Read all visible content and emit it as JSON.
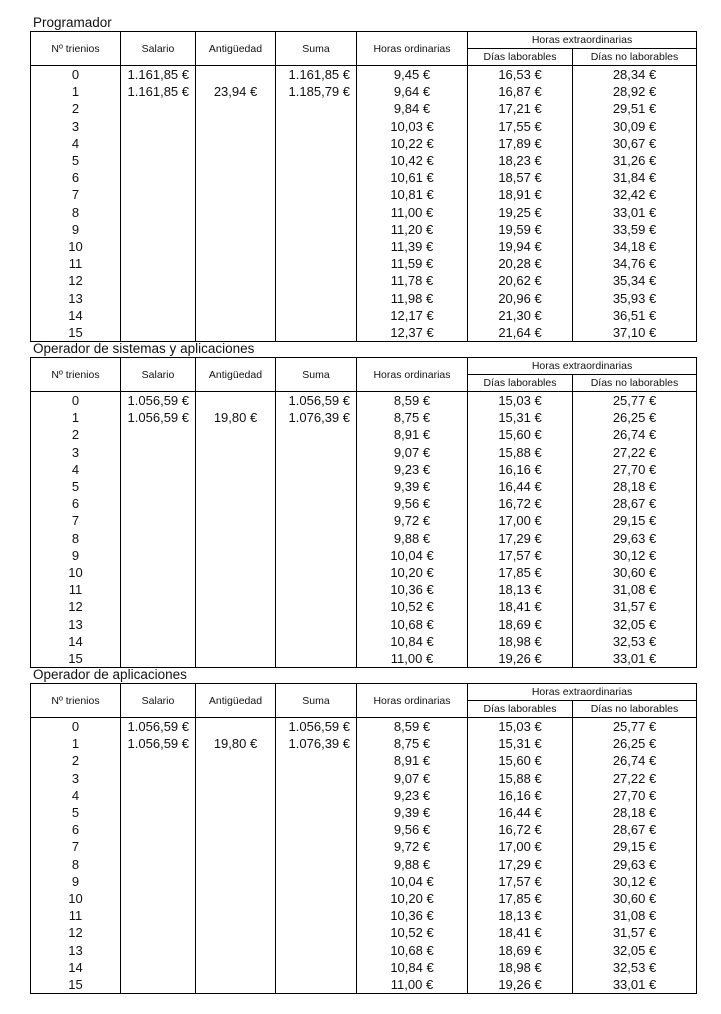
{
  "headers": {
    "trienios": "Nº trienios",
    "salario": "Salario",
    "antiguedad": "Antigüedad",
    "suma": "Suma",
    "horas_ordinarias": "Horas ordinarias",
    "horas_extraordinarias": "Horas extraordinarias",
    "dias_laborables": "Días laborables",
    "dias_no_laborables": "Días no laborables"
  },
  "sections": [
    {
      "title": "Programador",
      "rows": [
        [
          "0",
          "1.161,85 €",
          "",
          "1.161,85 €",
          "9,45 €",
          "16,53 €",
          "28,34 €"
        ],
        [
          "1",
          "1.161,85 €",
          "23,94 €",
          "1.185,79 €",
          "9,64 €",
          "16,87 €",
          "28,92 €"
        ],
        [
          "2",
          "",
          "",
          "",
          "9,84 €",
          "17,21 €",
          "29,51 €"
        ],
        [
          "3",
          "",
          "",
          "",
          "10,03 €",
          "17,55 €",
          "30,09 €"
        ],
        [
          "4",
          "",
          "",
          "",
          "10,22 €",
          "17,89 €",
          "30,67 €"
        ],
        [
          "5",
          "",
          "",
          "",
          "10,42 €",
          "18,23 €",
          "31,26 €"
        ],
        [
          "6",
          "",
          "",
          "",
          "10,61 €",
          "18,57 €",
          "31,84 €"
        ],
        [
          "7",
          "",
          "",
          "",
          "10,81 €",
          "18,91 €",
          "32,42 €"
        ],
        [
          "8",
          "",
          "",
          "",
          "11,00 €",
          "19,25 €",
          "33,01 €"
        ],
        [
          "9",
          "",
          "",
          "",
          "11,20 €",
          "19,59 €",
          "33,59 €"
        ],
        [
          "10",
          "",
          "",
          "",
          "11,39 €",
          "19,94 €",
          "34,18 €"
        ],
        [
          "11",
          "",
          "",
          "",
          "11,59 €",
          "20,28 €",
          "34,76 €"
        ],
        [
          "12",
          "",
          "",
          "",
          "11,78 €",
          "20,62 €",
          "35,34 €"
        ],
        [
          "13",
          "",
          "",
          "",
          "11,98 €",
          "20,96 €",
          "35,93 €"
        ],
        [
          "14",
          "",
          "",
          "",
          "12,17 €",
          "21,30 €",
          "36,51 €"
        ],
        [
          "15",
          "",
          "",
          "",
          "12,37 €",
          "21,64 €",
          "37,10 €"
        ]
      ]
    },
    {
      "title": "Operador de sistemas y aplicaciones",
      "rows": [
        [
          "0",
          "1.056,59 €",
          "",
          "1.056,59 €",
          "8,59 €",
          "15,03 €",
          "25,77 €"
        ],
        [
          "1",
          "1.056,59 €",
          "19,80 €",
          "1.076,39 €",
          "8,75 €",
          "15,31 €",
          "26,25 €"
        ],
        [
          "2",
          "",
          "",
          "",
          "8,91 €",
          "15,60 €",
          "26,74 €"
        ],
        [
          "3",
          "",
          "",
          "",
          "9,07 €",
          "15,88 €",
          "27,22 €"
        ],
        [
          "4",
          "",
          "",
          "",
          "9,23 €",
          "16,16 €",
          "27,70 €"
        ],
        [
          "5",
          "",
          "",
          "",
          "9,39 €",
          "16,44 €",
          "28,18 €"
        ],
        [
          "6",
          "",
          "",
          "",
          "9,56 €",
          "16,72 €",
          "28,67 €"
        ],
        [
          "7",
          "",
          "",
          "",
          "9,72 €",
          "17,00 €",
          "29,15 €"
        ],
        [
          "8",
          "",
          "",
          "",
          "9,88 €",
          "17,29 €",
          "29,63 €"
        ],
        [
          "9",
          "",
          "",
          "",
          "10,04 €",
          "17,57 €",
          "30,12 €"
        ],
        [
          "10",
          "",
          "",
          "",
          "10,20 €",
          "17,85 €",
          "30,60 €"
        ],
        [
          "11",
          "",
          "",
          "",
          "10,36 €",
          "18,13 €",
          "31,08 €"
        ],
        [
          "12",
          "",
          "",
          "",
          "10,52 €",
          "18,41 €",
          "31,57 €"
        ],
        [
          "13",
          "",
          "",
          "",
          "10,68 €",
          "18,69 €",
          "32,05 €"
        ],
        [
          "14",
          "",
          "",
          "",
          "10,84 €",
          "18,98 €",
          "32,53 €"
        ],
        [
          "15",
          "",
          "",
          "",
          "11,00 €",
          "19,26 €",
          "33,01 €"
        ]
      ]
    },
    {
      "title": "Operador de aplicaciones",
      "rows": [
        [
          "0",
          "1.056,59 €",
          "",
          "1.056,59 €",
          "8,59 €",
          "15,03 €",
          "25,77 €"
        ],
        [
          "1",
          "1.056,59 €",
          "19,80 €",
          "1.076,39 €",
          "8,75 €",
          "15,31 €",
          "26,25 €"
        ],
        [
          "2",
          "",
          "",
          "",
          "8,91 €",
          "15,60 €",
          "26,74 €"
        ],
        [
          "3",
          "",
          "",
          "",
          "9,07 €",
          "15,88 €",
          "27,22 €"
        ],
        [
          "4",
          "",
          "",
          "",
          "9,23 €",
          "16,16 €",
          "27,70 €"
        ],
        [
          "5",
          "",
          "",
          "",
          "9,39 €",
          "16,44 €",
          "28,18 €"
        ],
        [
          "6",
          "",
          "",
          "",
          "9,56 €",
          "16,72 €",
          "28,67 €"
        ],
        [
          "7",
          "",
          "",
          "",
          "9,72 €",
          "17,00 €",
          "29,15 €"
        ],
        [
          "8",
          "",
          "",
          "",
          "9,88 €",
          "17,29 €",
          "29,63 €"
        ],
        [
          "9",
          "",
          "",
          "",
          "10,04 €",
          "17,57 €",
          "30,12 €"
        ],
        [
          "10",
          "",
          "",
          "",
          "10,20 €",
          "17,85 €",
          "30,60 €"
        ],
        [
          "11",
          "",
          "",
          "",
          "10,36 €",
          "18,13 €",
          "31,08 €"
        ],
        [
          "12",
          "",
          "",
          "",
          "10,52 €",
          "18,41 €",
          "31,57 €"
        ],
        [
          "13",
          "",
          "",
          "",
          "10,68 €",
          "18,69 €",
          "32,05 €"
        ],
        [
          "14",
          "",
          "",
          "",
          "10,84 €",
          "18,98 €",
          "32,53 €"
        ],
        [
          "15",
          "",
          "",
          "",
          "11,00 €",
          "19,26 €",
          "33,01 €"
        ]
      ]
    }
  ]
}
